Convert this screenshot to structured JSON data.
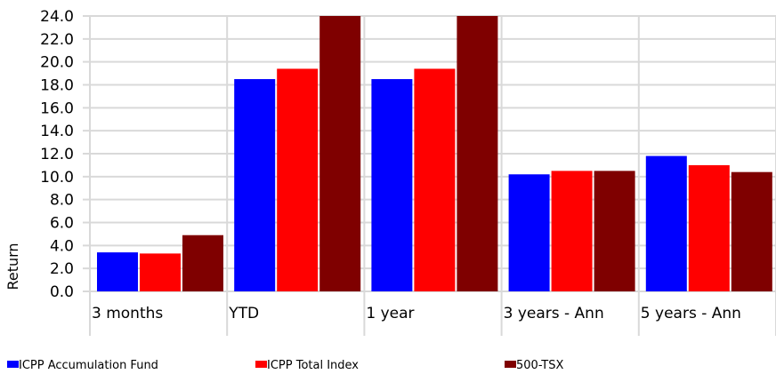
{
  "chart_data": {
    "type": "bar",
    "y_label": "Return",
    "categories": [
      "3 months",
      "YTD",
      "1 year",
      "3 years - Ann",
      "5 years - Ann"
    ],
    "series": [
      {
        "name": "ICPP Accumulation Fund",
        "color": "#0000ff",
        "values": [
          3.4,
          18.5,
          18.5,
          10.2,
          11.8
        ]
      },
      {
        "name": "ICPP Total Index",
        "color": "#ff0000",
        "values": [
          3.3,
          19.4,
          19.4,
          10.5,
          11.0
        ]
      },
      {
        "name": "500-TSX",
        "color": "#7f0000",
        "values": [
          4.9,
          24.0,
          24.0,
          10.5,
          10.4
        ]
      }
    ],
    "ylim": [
      0,
      24
    ],
    "yticks": [
      {
        "value": 0,
        "label": "0.0"
      },
      {
        "value": 2,
        "label": "2.0"
      },
      {
        "value": 4,
        "label": "4.0"
      },
      {
        "value": 6,
        "label": "6.0"
      },
      {
        "value": 8,
        "label": "8.0"
      },
      {
        "value": 10,
        "label": "10.0"
      },
      {
        "value": 12,
        "label": "12.0"
      },
      {
        "value": 14,
        "label": "14.0"
      },
      {
        "value": 16,
        "label": "16.0"
      },
      {
        "value": 18,
        "label": "18.0"
      },
      {
        "value": 20,
        "label": "20.0"
      },
      {
        "value": 22,
        "label": "22.0"
      },
      {
        "value": 24,
        "label": "24.0"
      }
    ],
    "grid": true,
    "legend": "bottom"
  }
}
